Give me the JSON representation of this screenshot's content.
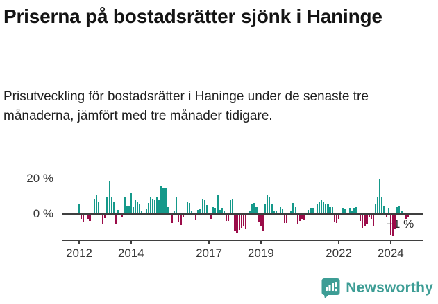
{
  "header": {
    "title": "Priserna på bostadsrätter sjönk i Haninge",
    "subtitle": "Prisutveckling för bostadsrätter i Haninge under de senaste tre månaderna, jämfört med tre månader tidigare."
  },
  "chart_data": {
    "type": "bar",
    "title": "Priserna på bostadsrätter sjönk i Haninge",
    "description": "Prisutveckling för bostadsrätter i Haninge under de senaste tre månaderna, jämfört med tre månader tidigare.",
    "unit": "%",
    "frequency": "monthly",
    "start": "2012-01",
    "end": "2024-09",
    "values": [
      5,
      -2.5,
      -4,
      0,
      -2.5,
      -3.5,
      0,
      8,
      10.5,
      6.5,
      0,
      -5.5,
      -2,
      9.5,
      18.5,
      9.5,
      6.5,
      -5.5,
      2,
      0,
      -1,
      9,
      4.5,
      4.5,
      11.8,
      3.4,
      7.6,
      6.5,
      5,
      1,
      0,
      2.4,
      6,
      9.5,
      8.2,
      7.3,
      8.9,
      7.3,
      15.4,
      14.4,
      14,
      3.7,
      0,
      -4.8,
      1.7,
      9.5,
      -4,
      -6,
      -1.6,
      0,
      6.5,
      6,
      1.3,
      0,
      -2.6,
      2.1,
      2.4,
      7.8,
      7.3,
      4.7,
      0,
      -2.2,
      3.7,
      3,
      10.5,
      2.1,
      2.6,
      1.7,
      -3.5,
      -3.5,
      7.3,
      8.2,
      -9.4,
      -10.7,
      -8.8,
      -7.4,
      -6.1,
      -7.8,
      0,
      1.3,
      5,
      6,
      3.7,
      -4.2,
      -6.1,
      -9.4,
      5.2,
      10.5,
      9.2,
      5,
      1.7,
      1.3,
      0,
      3.7,
      2.4,
      -4.8,
      -4.8,
      0,
      1.3,
      6,
      3.7,
      -5.5,
      -3.5,
      -2.2,
      -2.9,
      0,
      2.1,
      2.6,
      2.6,
      0,
      5.2,
      6.5,
      7.3,
      6.5,
      5,
      5,
      3.7,
      3.7,
      -4.2,
      -4.8,
      -2.2,
      0,
      3,
      2.4,
      0,
      3,
      1.3,
      2.6,
      3.7,
      0,
      -3.5,
      -7.4,
      -6.8,
      -5.5,
      -1.6,
      -2.2,
      -6.5,
      5,
      9.2,
      19.3,
      9.3,
      4,
      -1.5,
      3,
      -11.4,
      -12.3,
      -7.7,
      3.5,
      4.4,
      1.6,
      0,
      -2.5,
      -1
    ],
    "ylim": [
      -14,
      22
    ],
    "yticks": [
      "20 %",
      "0 %"
    ],
    "ytick_values": [
      20,
      0
    ],
    "xticks": [
      "2012",
      "2014",
      "2017",
      "2019",
      "2022",
      "2024"
    ],
    "grid": "single horizontal gridline at 20% plus zero baseline",
    "annotation": "−1 %",
    "annotation_value": -1,
    "legend_position": "none",
    "colors": {
      "positive": "#15998a",
      "negative": "#9b0c49",
      "axis": "#3f3f3f",
      "gridline": "#dcdcdc"
    }
  },
  "footer": {
    "brand": "Newsworthy",
    "brand_color": "#3d9d95"
  }
}
